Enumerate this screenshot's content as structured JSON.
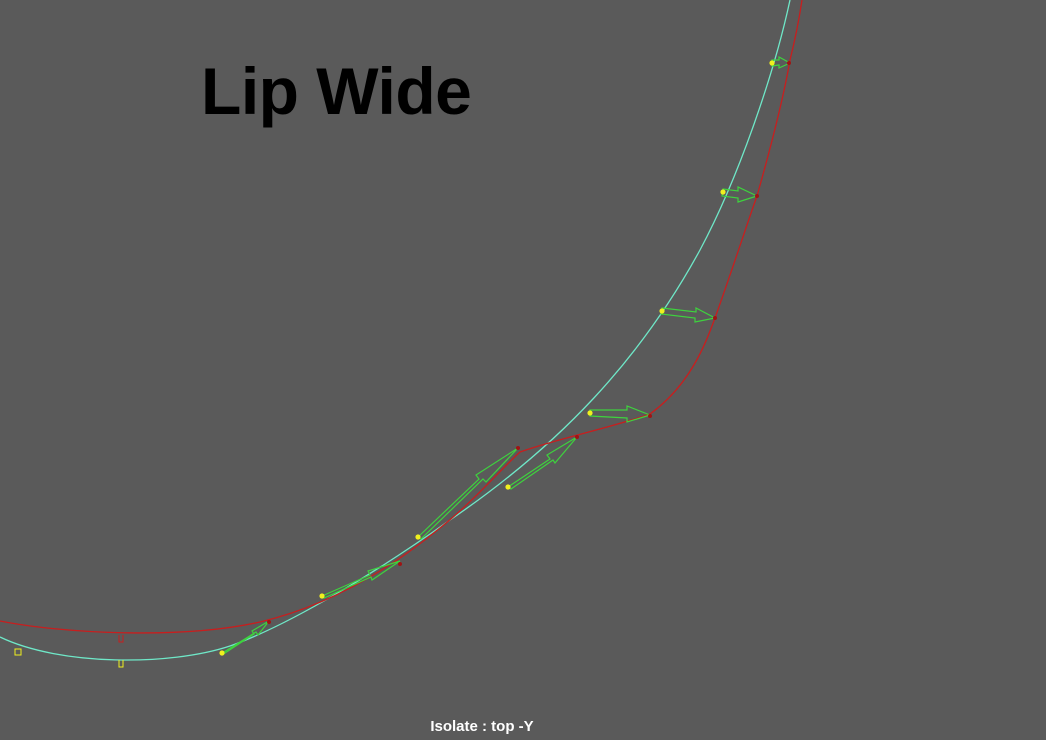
{
  "viewport": {
    "title": "Lip Wide",
    "status": "Isolate : top -Y"
  },
  "colors": {
    "background": "#5a5a5a",
    "base_curve": "#6fe8c8",
    "deformed_curve": "#c81e1e",
    "arrow": "#3ed23e",
    "source_point": "#f0f01e",
    "target_point": "#a01414",
    "title": "#000000",
    "status": "#ffffff"
  },
  "icons": {
    "pivot_marker": "square-pivot-icon",
    "curve_marker": "u-shaped-cv-icon"
  }
}
